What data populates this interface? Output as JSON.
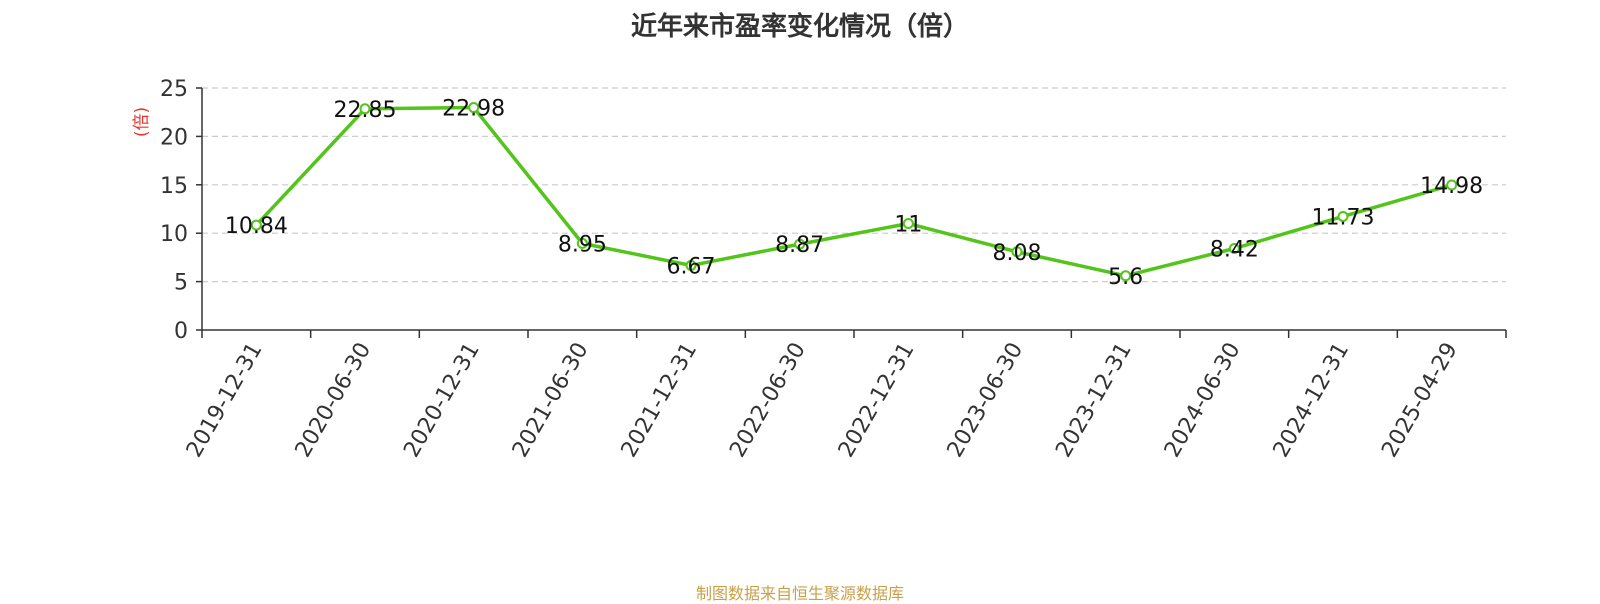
{
  "chart_data": {
    "type": "line",
    "title": "近年来市盈率变化情况（倍）",
    "ylabel": "(倍)",
    "xlabel": "",
    "categories": [
      "2019-12-31",
      "2020-06-30",
      "2020-12-31",
      "2021-06-30",
      "2021-12-31",
      "2022-06-30",
      "2022-12-31",
      "2023-06-30",
      "2023-12-31",
      "2024-06-30",
      "2024-12-31",
      "2025-04-29"
    ],
    "series": [
      {
        "values": [
          10.84,
          22.85,
          22.98,
          8.95,
          6.67,
          8.87,
          11,
          8.08,
          5.6,
          8.42,
          11.73,
          14.98
        ],
        "labels": [
          "10.84",
          "22.85",
          "22.98",
          "8.95",
          "6.67",
          "8.87",
          "11",
          "8.08",
          "5.6",
          "8.42",
          "11.73",
          "14.98"
        ]
      }
    ],
    "ylim": [
      0,
      25
    ],
    "yticks": [
      0,
      5,
      10,
      15,
      20,
      25
    ],
    "grid": true,
    "legend": "none",
    "colors": {
      "line": "#52c41a",
      "axis": "#333333",
      "grid": "#cccccc",
      "ylabel": "#e8322b"
    }
  },
  "footer": {
    "source": "制图数据来自恒生聚源数据库"
  }
}
